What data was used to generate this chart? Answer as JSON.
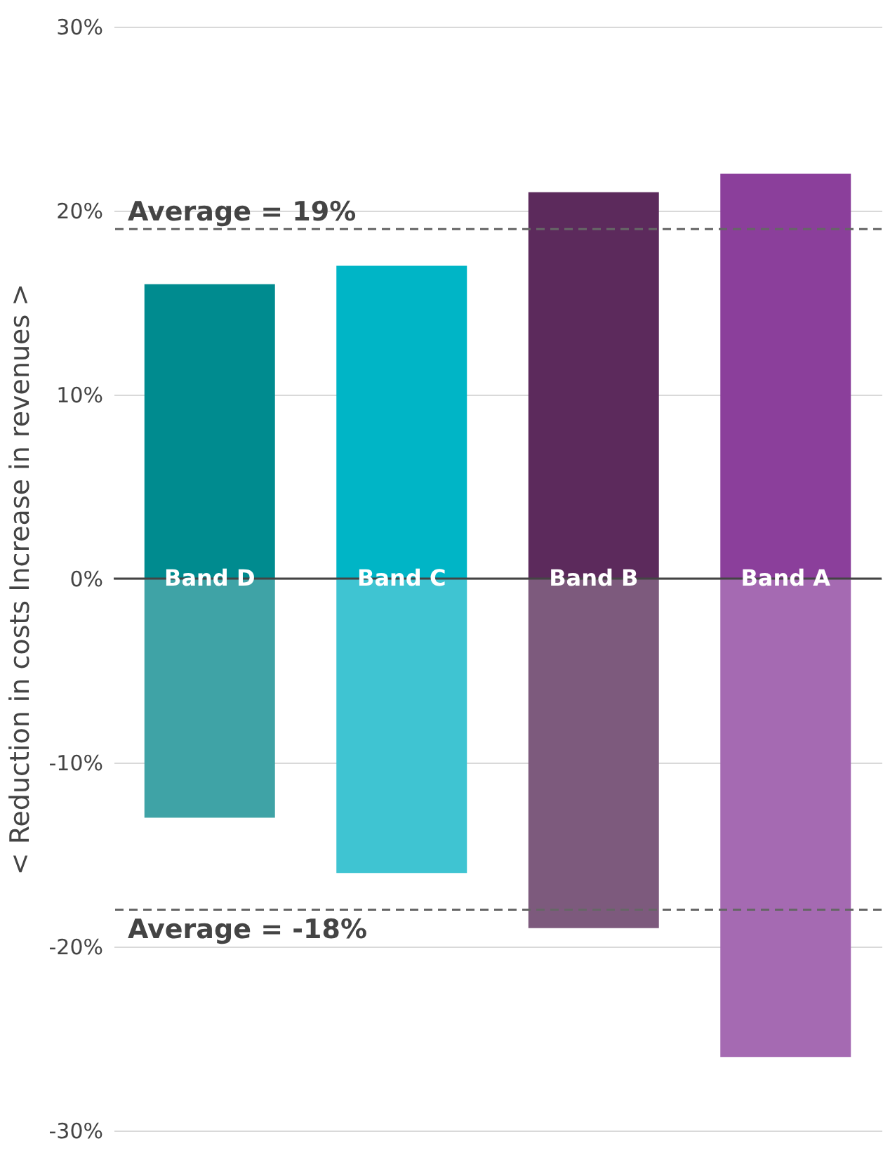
{
  "chart_data": {
    "type": "bar",
    "stacked": true,
    "ylabel": "< Reduction in costs        Increase in revenues >",
    "categories": [
      "Band D",
      "Band C",
      "Band B",
      "Band A"
    ],
    "series": [
      {
        "values": [
          16,
          17,
          21,
          22
        ],
        "colors": [
          "#008b8f",
          "#00b5c6",
          "#5c2a5c",
          "#8b3f9b"
        ]
      },
      {
        "values": [
          -13,
          -16,
          -19,
          -26
        ],
        "colors": [
          "#3fa3a6",
          "#3fc4d2",
          "#7d5a7d",
          "#a56ab2"
        ]
      }
    ],
    "ylim": [
      -30,
      30
    ],
    "yticks": [
      {
        "value": -30,
        "label": "-30%"
      },
      {
        "value": -20,
        "label": "-20%"
      },
      {
        "value": -10,
        "label": "-10%"
      },
      {
        "value": 0,
        "label": "0%"
      },
      {
        "value": 10,
        "label": "10%"
      },
      {
        "value": 20,
        "label": "20%"
      },
      {
        "value": 30,
        "label": "30%"
      }
    ],
    "grid": "y",
    "ref_lines": [
      {
        "axis": "y",
        "value": 19,
        "label": "Average = 19%",
        "line_style": "dashed",
        "color": "#666666"
      },
      {
        "axis": "y",
        "value": -18,
        "label": "Average = -18%",
        "line_style": "dashed",
        "color": "#666666"
      }
    ]
  }
}
